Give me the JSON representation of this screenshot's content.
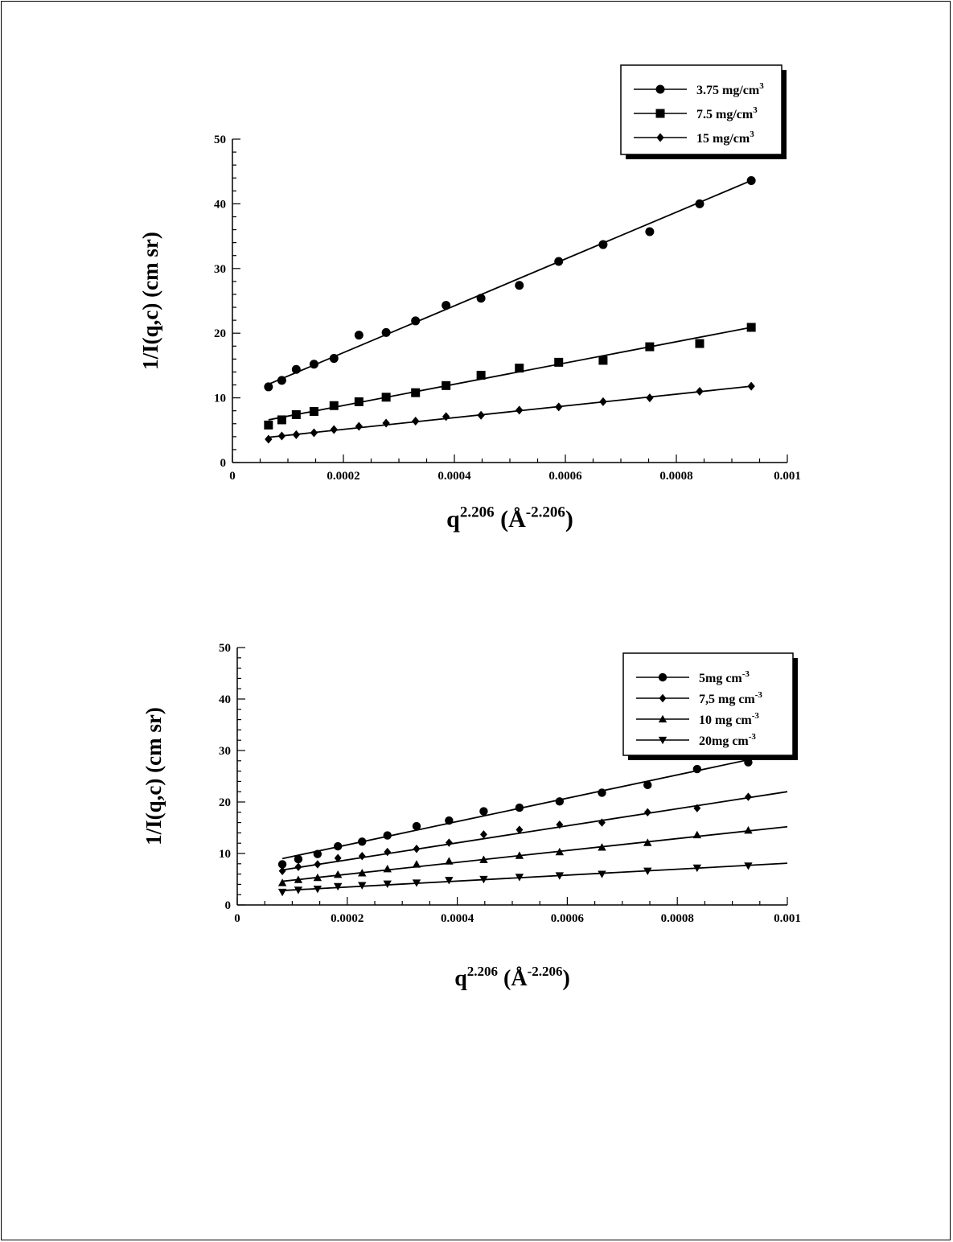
{
  "chart_data": [
    {
      "type": "scatter",
      "xlabel": {
        "base": "q",
        "sup": "2.206",
        "unit_open": " (Å",
        "unit_sup": "-2.206",
        "unit_close": ")"
      },
      "ylabel": "1/I(q,c) (cm sr)",
      "xlim": [
        0,
        0.001
      ],
      "ylim": [
        0,
        50
      ],
      "x_ticks": [
        0,
        0.0002,
        0.0004,
        0.0006,
        0.0008,
        0.001
      ],
      "x_tick_labels": [
        "0",
        "0.0002",
        "0.0004",
        "0.0006",
        "0.0008",
        "0.001"
      ],
      "y_ticks": [
        0,
        10,
        20,
        30,
        40,
        50
      ],
      "y_tick_labels": [
        "0",
        "10",
        "20",
        "30",
        "40",
        "50"
      ],
      "legend_position": "top-right",
      "series": [
        {
          "name": "3.75 mg/cm",
          "name_sup": "3",
          "marker": "circle",
          "x": [
            6.5e-05,
            8.9e-05,
            0.000115,
            0.000147,
            0.000183,
            0.000228,
            0.000277,
            0.00033,
            0.000385,
            0.000448,
            0.000517,
            0.000588,
            0.000668,
            0.000752,
            0.000842,
            0.000935
          ],
          "y": [
            11.7,
            12.7,
            14.4,
            15.2,
            16.1,
            19.7,
            20.1,
            21.9,
            24.3,
            25.4,
            27.4,
            31.1,
            33.7,
            35.7,
            40.0,
            43.6
          ],
          "fit": {
            "x": [
              6.5e-05,
              0.000935
            ],
            "y": [
              12.1,
              43.6
            ]
          }
        },
        {
          "name": "7.5 mg/cm",
          "name_sup": "3",
          "marker": "square",
          "x": [
            6.5e-05,
            8.9e-05,
            0.000115,
            0.000147,
            0.000183,
            0.000228,
            0.000277,
            0.00033,
            0.000385,
            0.000448,
            0.000517,
            0.000588,
            0.000668,
            0.000752,
            0.000842,
            0.000935
          ],
          "y": [
            5.8,
            6.6,
            7.4,
            7.9,
            8.8,
            9.4,
            10.1,
            10.8,
            11.9,
            13.5,
            14.6,
            15.5,
            15.8,
            17.9,
            18.4,
            20.9
          ],
          "fit": {
            "x": [
              6.5e-05,
              0.000935
            ],
            "y": [
              6.6,
              20.9
            ]
          }
        },
        {
          "name": "15 mg/cm",
          "name_sup": "3",
          "marker": "diamond",
          "x": [
            6.5e-05,
            8.9e-05,
            0.000115,
            0.000147,
            0.000183,
            0.000228,
            0.000277,
            0.00033,
            0.000385,
            0.000448,
            0.000517,
            0.000588,
            0.000668,
            0.000752,
            0.000842,
            0.000935
          ],
          "y": [
            3.6,
            4.1,
            4.3,
            4.6,
            5.1,
            5.6,
            6.1,
            6.4,
            7.1,
            7.3,
            8.1,
            8.6,
            9.4,
            10.0,
            11.0,
            11.8
          ],
          "fit": {
            "x": [
              6.5e-05,
              0.000935
            ],
            "y": [
              3.9,
              11.8
            ]
          }
        }
      ]
    },
    {
      "type": "scatter",
      "xlabel": {
        "base": "q",
        "sup": "2.206",
        "unit_open": " (Å",
        "unit_sup": "-2.206",
        "unit_close": ")"
      },
      "ylabel": "1/I(q,c) (cm sr)",
      "xlim": [
        0,
        0.001
      ],
      "ylim": [
        0,
        50
      ],
      "x_ticks": [
        0,
        0.0002,
        0.0004,
        0.0006,
        0.0008,
        0.001
      ],
      "x_tick_labels": [
        "0",
        "0.0002",
        "0.0004",
        "0.0006",
        "0.0008",
        "0.001"
      ],
      "y_ticks": [
        0,
        10,
        20,
        30,
        40,
        50
      ],
      "y_tick_labels": [
        "0",
        "10",
        "20",
        "30",
        "40",
        "50"
      ],
      "legend_position": "top-right",
      "series": [
        {
          "name": "5mg cm",
          "name_sup": "-3",
          "marker": "circle",
          "x": [
            8.2e-05,
            0.000111,
            0.000146,
            0.000183,
            0.000227,
            0.000273,
            0.000326,
            0.000385,
            0.000448,
            0.000513,
            0.000586,
            0.000663,
            0.000746,
            0.000836,
            0.000929
          ],
          "y": [
            7.9,
            8.9,
            9.9,
            11.4,
            12.3,
            13.5,
            15.3,
            16.4,
            18.2,
            18.9,
            20.1,
            21.8,
            23.3,
            26.4,
            27.7
          ],
          "fit": {
            "x": [
              8.2e-05,
              0.001
            ],
            "y": [
              9.0,
              29.8
            ]
          }
        },
        {
          "name": "7,5 mg cm",
          "name_sup": "-3",
          "marker": "diamond",
          "x": [
            8.2e-05,
            0.000111,
            0.000146,
            0.000183,
            0.000227,
            0.000273,
            0.000326,
            0.000385,
            0.000448,
            0.000513,
            0.000586,
            0.000663,
            0.000746,
            0.000836,
            0.000929
          ],
          "y": [
            6.6,
            7.4,
            7.9,
            9.1,
            9.5,
            10.3,
            10.9,
            12.1,
            13.7,
            14.6,
            15.6,
            16.0,
            18.0,
            18.8,
            21.0
          ],
          "fit": {
            "x": [
              8.2e-05,
              0.001
            ],
            "y": [
              6.8,
              22.0
            ]
          }
        },
        {
          "name": "10 mg cm",
          "name_sup": "-3",
          "marker": "triangle-up",
          "x": [
            8.2e-05,
            0.000111,
            0.000146,
            0.000183,
            0.000227,
            0.000273,
            0.000326,
            0.000385,
            0.000448,
            0.000513,
            0.000586,
            0.000663,
            0.000746,
            0.000836,
            0.000929
          ],
          "y": [
            4.3,
            4.9,
            5.3,
            5.9,
            6.2,
            7.0,
            7.9,
            8.5,
            8.8,
            9.6,
            10.3,
            11.2,
            12.1,
            13.6,
            14.5
          ],
          "fit": {
            "x": [
              8.2e-05,
              0.001
            ],
            "y": [
              4.6,
              15.2
            ]
          }
        },
        {
          "name": "20mg cm",
          "name_sup": "-3",
          "marker": "triangle-down",
          "x": [
            8.2e-05,
            0.000111,
            0.000146,
            0.000183,
            0.000227,
            0.000273,
            0.000326,
            0.000385,
            0.000448,
            0.000513,
            0.000586,
            0.000663,
            0.000746,
            0.000836,
            0.000929
          ],
          "y": [
            2.5,
            2.9,
            3.1,
            3.6,
            3.8,
            4.1,
            4.3,
            4.8,
            5.0,
            5.4,
            5.7,
            6.0,
            6.6,
            7.2,
            7.6
          ],
          "fit": {
            "x": [
              8.2e-05,
              0.001
            ],
            "y": [
              2.8,
              8.1
            ]
          }
        }
      ]
    }
  ]
}
